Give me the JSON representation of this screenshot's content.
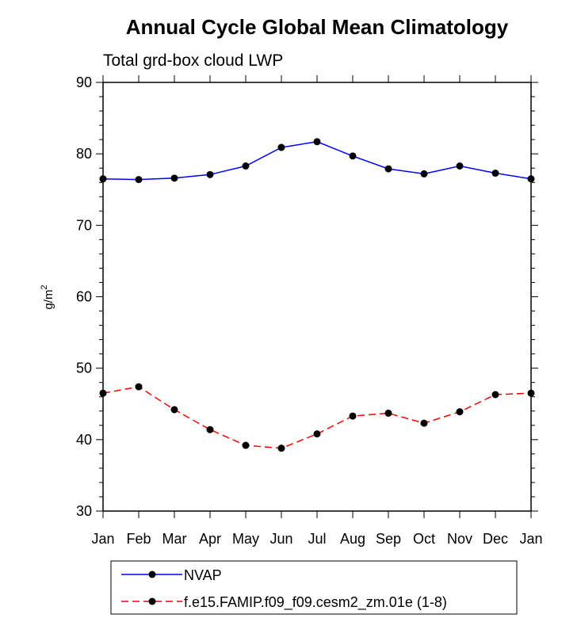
{
  "chart_data": {
    "type": "line",
    "title": "Annual Cycle Global Mean Climatology",
    "subtitle": "Total grd-box cloud LWP",
    "ylabel": "g/m",
    "ylabel_sup": "2",
    "xlabel": "",
    "categories": [
      "Jan",
      "Feb",
      "Mar",
      "Apr",
      "May",
      "Jun",
      "Jul",
      "Aug",
      "Sep",
      "Oct",
      "Nov",
      "Dec",
      "Jan"
    ],
    "ylim": [
      30,
      90
    ],
    "yticks": [
      30,
      40,
      50,
      60,
      70,
      80,
      90
    ],
    "series": [
      {
        "name": "NVAP",
        "color": "#0000ff",
        "dashed": false,
        "values": [
          76.5,
          76.4,
          76.6,
          77.1,
          78.3,
          80.9,
          81.7,
          79.7,
          77.9,
          77.2,
          78.3,
          77.3,
          76.5
        ]
      },
      {
        "name": "f.e15.FAMIP.f09_f09.cesm2_zm.01e (1-8)",
        "color": "#ff0000",
        "dashed": true,
        "values": [
          46.5,
          47.4,
          44.2,
          41.4,
          39.2,
          38.8,
          40.8,
          43.3,
          43.7,
          42.3,
          43.9,
          46.3,
          46.5
        ]
      }
    ]
  }
}
